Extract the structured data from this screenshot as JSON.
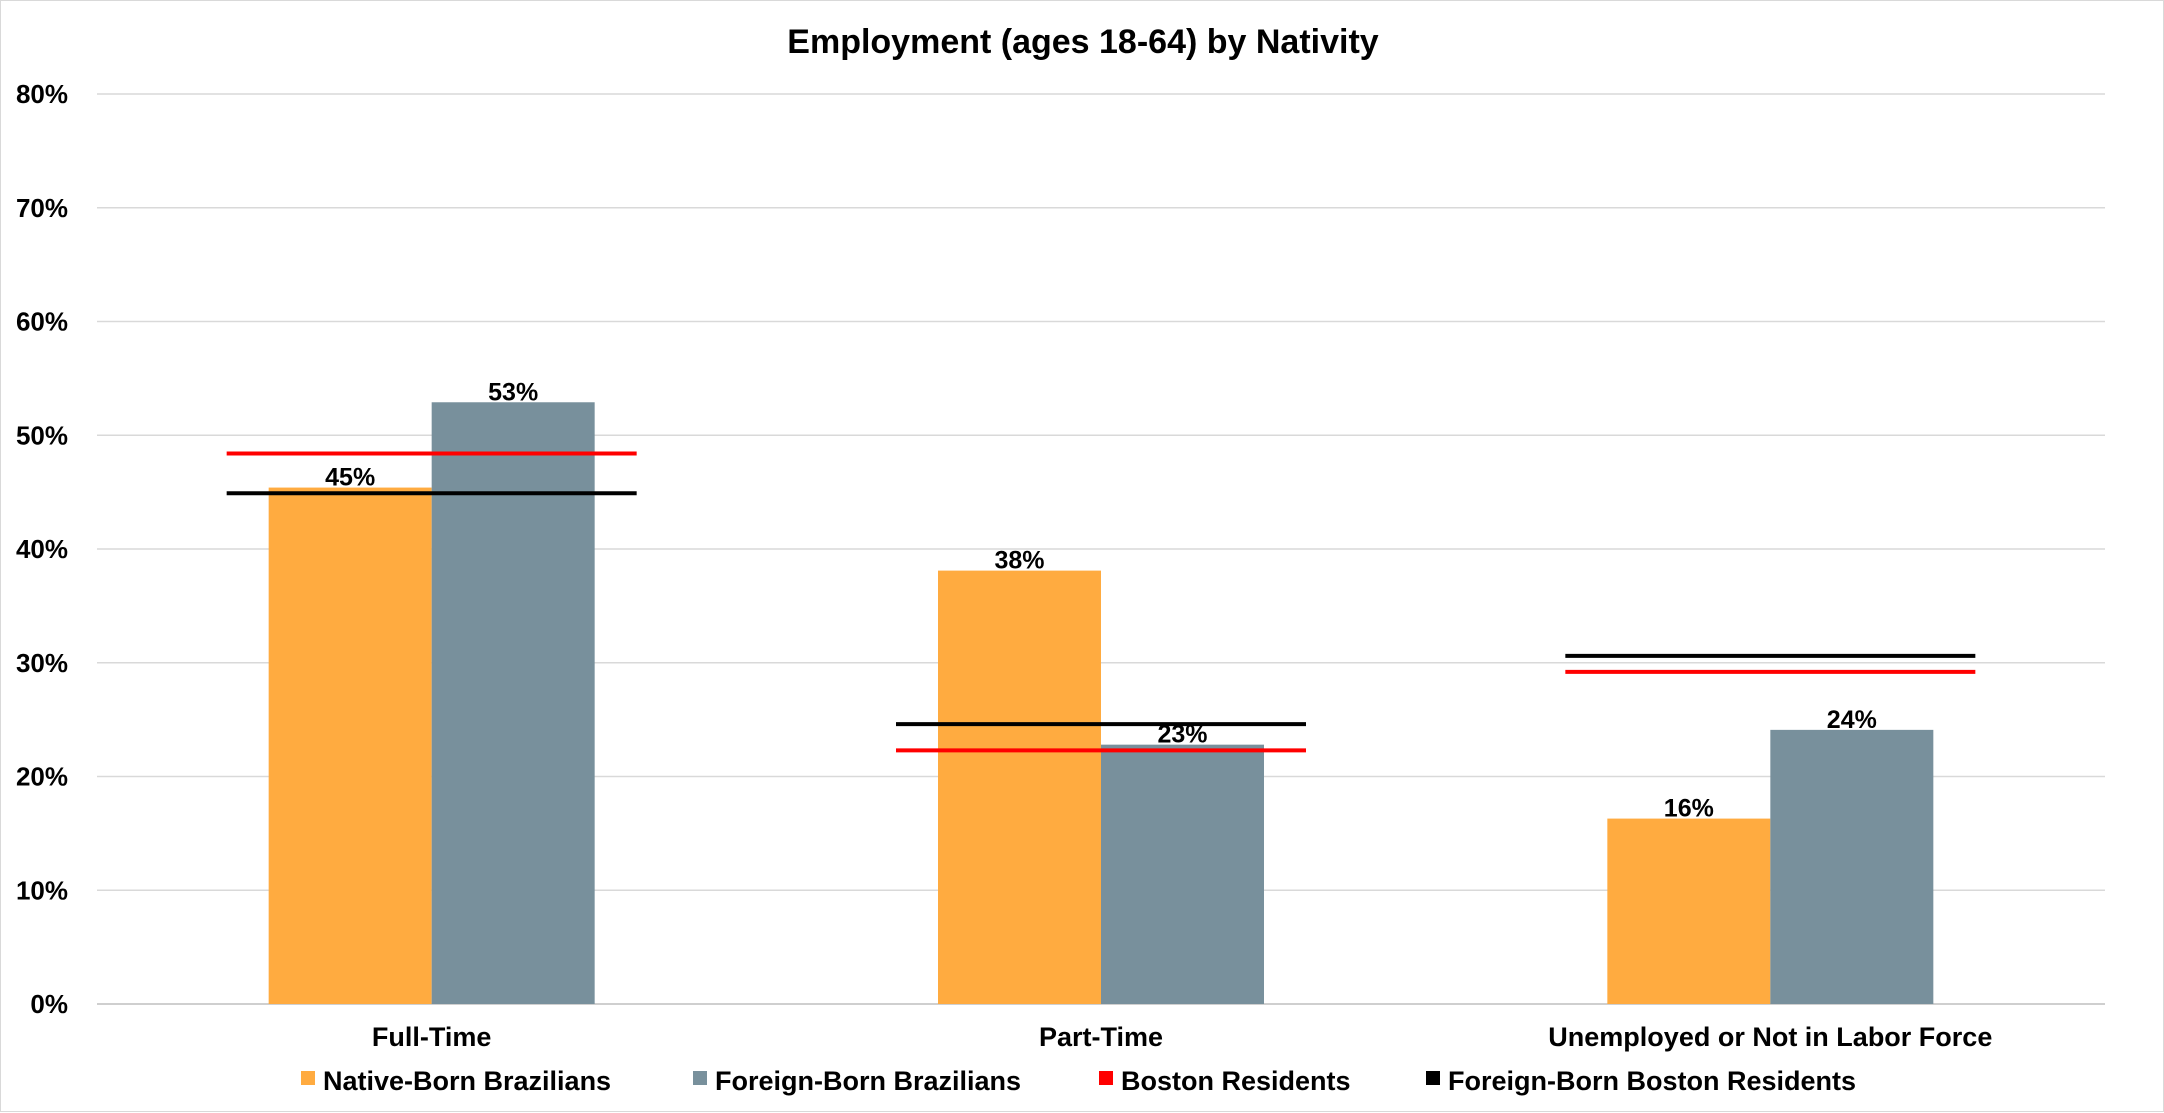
{
  "chart_data": {
    "type": "bar",
    "title": "Employment (ages 18-64) by Nativity",
    "xlabel": "",
    "ylabel": "",
    "ylim": [
      0,
      0.8
    ],
    "y_ticks": [
      0,
      0.1,
      0.2,
      0.3,
      0.4,
      0.5,
      0.6,
      0.7,
      0.8
    ],
    "y_tick_labels": [
      "0%",
      "10%",
      "20%",
      "30%",
      "40%",
      "50%",
      "60%",
      "70%",
      "80%"
    ],
    "grid": true,
    "legend_position": "bottom",
    "categories": [
      "Full-Time",
      "Part-Time",
      "Unemployed or Not in Labor Force"
    ],
    "series": [
      {
        "name": "Native-Born Brazilians",
        "kind": "bar",
        "color": "#FFAB40",
        "values": [
          0.454,
          0.381,
          0.163
        ],
        "labels": [
          "45%",
          "38%",
          "16%"
        ]
      },
      {
        "name": "Foreign-Born Brazilians",
        "kind": "bar",
        "color": "#78909C",
        "values": [
          0.529,
          0.228,
          0.241
        ],
        "labels": [
          "53%",
          "23%",
          "24%"
        ]
      },
      {
        "name": "Boston Residents",
        "kind": "line-marker",
        "color": "#FF0000",
        "values": [
          0.484,
          0.223,
          0.292
        ]
      },
      {
        "name": "Foreign-Born Boston Residents",
        "kind": "line-marker",
        "color": "#000000",
        "values": [
          0.449,
          0.246,
          0.306
        ]
      }
    ]
  }
}
